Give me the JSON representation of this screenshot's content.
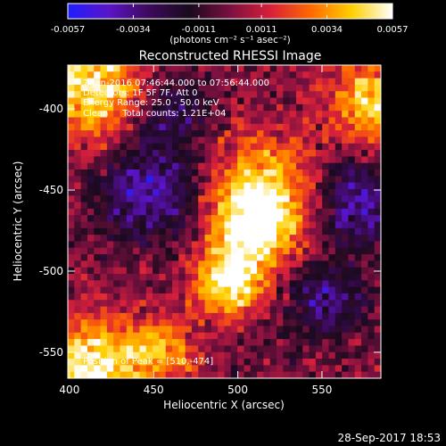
{
  "chart_data": {
    "type": "heatmap",
    "title": "Reconstructed RHESSI Image",
    "xlabel": "Heliocentric X (arcsec)",
    "ylabel": "Heliocentric Y (arcsec)",
    "xlim": [
      399,
      585
    ],
    "ylim": [
      -566,
      -373
    ],
    "x_ticks": [
      "400",
      "450",
      "500",
      "550"
    ],
    "x_tick_values": [
      400,
      450,
      500,
      550
    ],
    "y_ticks": [
      "-400",
      "-450",
      "-500",
      "-550"
    ],
    "y_tick_values": [
      -400,
      -450,
      -500,
      -550
    ],
    "colorbar": {
      "ticks": [
        "-0.0057",
        "-0.0034",
        "-0.0011",
        "0.0011",
        "0.0034",
        "0.0057"
      ],
      "tick_values": [
        -0.0057,
        -0.0034,
        -0.0011,
        0.0011,
        0.0034,
        0.0057
      ],
      "unit_label": "(photons cm⁻² s⁻¹ asec⁻²)",
      "range": [
        -0.0057,
        0.0057
      ],
      "colors": [
        "#1e1eff",
        "#5a14c8",
        "#3c0a5a",
        "#1a0a1e",
        "#7a1040",
        "#d8203a",
        "#ff6a00",
        "#ffd000",
        "#ffffff"
      ]
    },
    "annotations": [
      "7-Jan-2016 07:46:44.000 to 07:56:44.000",
      "Detectors: 1F 5F 7F, Att 0",
      "Energy Range: 25.0 - 50.0 keV",
      "Clean     Total counts: 1.21E+04"
    ],
    "peak_label": "Position of Peak = [510,-474]",
    "peak": [
      510,
      -474
    ],
    "sources": [
      {
        "x": 510,
        "y": -474,
        "peak": 0.0057,
        "spread": 18
      },
      {
        "x": 495,
        "y": -507,
        "peak": 0.0057,
        "spread": 14
      },
      {
        "x": 515,
        "y": -445,
        "peak": 0.0038,
        "spread": 22
      },
      {
        "x": 412,
        "y": -385,
        "peak": 0.0055,
        "spread": 22
      },
      {
        "x": 412,
        "y": -560,
        "peak": 0.0055,
        "spread": 22
      },
      {
        "x": 582,
        "y": -395,
        "peak": 0.0045,
        "spread": 20
      },
      {
        "x": 455,
        "y": -548,
        "peak": 0.0035,
        "spread": 14
      }
    ],
    "negative_regions": [
      {
        "x": 448,
        "y": -452,
        "peak": -0.0042,
        "spread": 20
      },
      {
        "x": 572,
        "y": -458,
        "peak": -0.004,
        "spread": 18
      },
      {
        "x": 460,
        "y": -400,
        "peak": -0.0028,
        "spread": 15
      },
      {
        "x": 552,
        "y": -518,
        "peak": -0.0032,
        "spread": 16
      }
    ]
  },
  "footer": {
    "timestamp": "28-Sep-2017 18:53"
  }
}
